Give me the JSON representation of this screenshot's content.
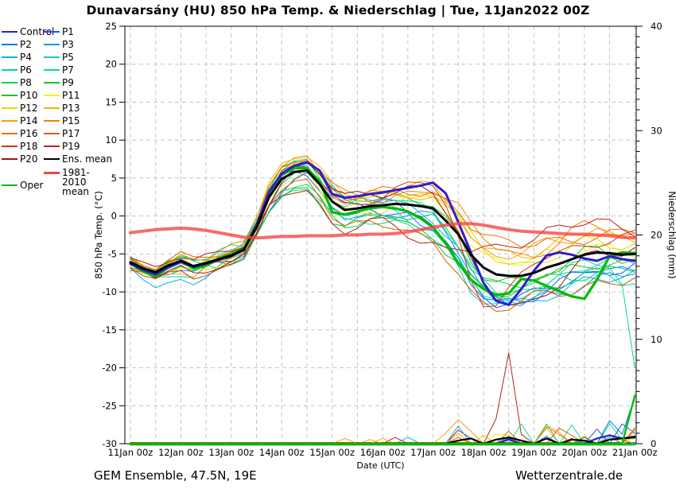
{
  "title": "Dunavarsány  (HU)  850 hPa Temp. & Niederschlag | Tue, 11Jan2022 00Z",
  "footer": {
    "left": "GEM Ensemble, 47.5N, 19E",
    "right": "Wetterzentrale.de"
  },
  "colors": {
    "grid": "#c4c4c4",
    "frame": "#000000",
    "control": "#2d1ecf",
    "oper": "#00bb00",
    "ens_mean": "#000000",
    "climate_mean": "#f64545"
  },
  "legend": {
    "col1": [
      {
        "label": "Control",
        "color": "#2d1ecf"
      },
      {
        "label": "P2",
        "color": "#0077f0"
      },
      {
        "label": "P4",
        "color": "#00b4e6"
      },
      {
        "label": "P6",
        "color": "#00d4ad"
      },
      {
        "label": "P8",
        "color": "#00d455"
      },
      {
        "label": "P10",
        "color": "#2cbe19"
      },
      {
        "label": "P12",
        "color": "#ead800"
      },
      {
        "label": "P14",
        "color": "#ff9d00"
      },
      {
        "label": "P16",
        "color": "#e87200"
      },
      {
        "label": "P18",
        "color": "#d03a10"
      },
      {
        "label": "P20",
        "color": "#a51212"
      },
      {
        "label": "Oper",
        "color": "#00bb00",
        "gap": true
      }
    ],
    "col2": [
      {
        "label": "P1",
        "color": "#1a56f0"
      },
      {
        "label": "P3",
        "color": "#0095f0"
      },
      {
        "label": "P5",
        "color": "#00ced2"
      },
      {
        "label": "P7",
        "color": "#00e08a"
      },
      {
        "label": "P9",
        "color": "#0cc42c"
      },
      {
        "label": "P11",
        "color": "#f0f00a"
      },
      {
        "label": "P13",
        "color": "#f0b400"
      },
      {
        "label": "P15",
        "color": "#f58200"
      },
      {
        "label": "P17",
        "color": "#d85e00"
      },
      {
        "label": "P19",
        "color": "#bb2218"
      },
      {
        "label": "Ens. mean",
        "color": "#000000"
      },
      {
        "label": "1981-2010 mean",
        "color": "#f64545",
        "two_line": true
      }
    ]
  },
  "chart_data": {
    "type": "line",
    "title": "Dunavarsány (HU) 850 hPa Temp. & Niederschlag | Tue, 11Jan2022 00Z",
    "x_axis": {
      "label": "Date (UTC)",
      "tick_labels": [
        "11Jan 00z",
        "12Jan 00z",
        "13Jan 00z",
        "14Jan 00z",
        "15Jan 00z",
        "16Jan 00z",
        "17Jan 00z",
        "18Jan 00z",
        "19Jan 00z",
        "20Jan 00z",
        "21Jan 00z"
      ],
      "start_hour": 0,
      "end_hour": 240,
      "step_hours": 6,
      "gridline_every_hours": 12
    },
    "y_left": {
      "label": "850 hPa Temp. (°C)",
      "min": -30,
      "max": 25,
      "tick_step": 5,
      "ticks": [
        25,
        20,
        15,
        10,
        5,
        0,
        -5,
        -10,
        -15,
        -20,
        -25,
        -30
      ]
    },
    "y_right": {
      "label": "Niederschlag (mm)",
      "min": 0,
      "max": 40,
      "tick_step": 10,
      "minor_tick_step": 1,
      "ticks": [
        40,
        30,
        20,
        10,
        0
      ]
    },
    "grid": "dashed",
    "legend_position": "top-left",
    "temperature_series": {
      "ens_mean": {
        "label": "Ens. mean",
        "color": "#000000",
        "values": [
          -6.1,
          -6.9,
          -7.4,
          -6.5,
          -5.9,
          -6.6,
          -6.2,
          -5.7,
          -5.2,
          -4.4,
          -1.5,
          2.5,
          4.9,
          5.8,
          6.0,
          4.2,
          1.9,
          0.8,
          1.0,
          1.3,
          1.4,
          1.6,
          1.5,
          1.3,
          1.0,
          -0.6,
          -2.4,
          -5.1,
          -6.8,
          -7.7,
          -7.9,
          -7.9,
          -7.5,
          -6.8,
          -6.3,
          -5.7,
          -5.1,
          -4.8,
          -4.9,
          -5.1,
          -5.0
        ]
      },
      "control": {
        "label": "Control",
        "color": "#2d1ecf",
        "values": [
          -6.3,
          -7.1,
          -7.7,
          -6.7,
          -6.0,
          -6.7,
          -6.3,
          -5.8,
          -5.3,
          -4.5,
          -1.2,
          3.2,
          5.6,
          6.6,
          7.1,
          6.0,
          2.9,
          2.4,
          2.6,
          2.9,
          3.1,
          3.4,
          3.7,
          4.0,
          4.4,
          3.0,
          -0.8,
          -4.8,
          -8.8,
          -11.2,
          -11.7,
          -9.6,
          -7.2,
          -5.2,
          -4.8,
          -5.1,
          -5.6,
          -5.9,
          -5.3,
          -5.7,
          -5.9
        ]
      },
      "oper": {
        "label": "Oper",
        "color": "#00bb00",
        "values": [
          -6.2,
          -7.3,
          -8.0,
          -6.8,
          -5.9,
          -6.9,
          -6.5,
          -5.6,
          -5.1,
          -4.3,
          -1.0,
          3.0,
          5.4,
          6.3,
          6.3,
          4.6,
          0.5,
          0.2,
          0.6,
          1.0,
          1.2,
          1.0,
          0.6,
          -0.3,
          -1.5,
          -3.6,
          -6.2,
          -8.4,
          -9.6,
          -10.4,
          -10.2,
          -8.3,
          -8.5,
          -9.2,
          -9.9,
          -10.6,
          -10.9,
          -8.4,
          -5.3,
          -4.8,
          -4.9
        ]
      },
      "climate_mean": {
        "label": "1981-2010 mean",
        "color": "#f64545",
        "values": [
          -2.2,
          -2.0,
          -1.8,
          -1.7,
          -1.6,
          -1.7,
          -1.9,
          -2.2,
          -2.5,
          -2.8,
          -2.9,
          -2.8,
          -2.7,
          -2.7,
          -2.6,
          -2.6,
          -2.6,
          -2.5,
          -2.5,
          -2.4,
          -2.4,
          -2.3,
          -2.1,
          -1.8,
          -1.5,
          -1.2,
          -1.0,
          -1.0,
          -1.2,
          -1.5,
          -1.8,
          -2.0,
          -2.1,
          -2.2,
          -2.3,
          -2.4,
          -2.4,
          -2.5,
          -2.6,
          -2.8,
          -2.9
        ]
      },
      "members_note": "20 perturbed members; offsets from ens_mean at 24h keyframes (t=0..240h)",
      "members": [
        {
          "name": "P1",
          "color": "#1a56f0",
          "offsets_24h": [
            0.3,
            -0.6,
            0.3,
            -1.8,
            0.9,
            -0.9,
            -2.0,
            -4.0,
            -2.5,
            -3.0,
            -1.6
          ]
        },
        {
          "name": "P2",
          "color": "#0077f0",
          "offsets_24h": [
            -0.4,
            0.4,
            -0.8,
            0.6,
            -1.2,
            0.5,
            -2.8,
            -3.6,
            -3.2,
            -2.0,
            -2.4
          ]
        },
        {
          "name": "P3",
          "color": "#0095f0",
          "offsets_24h": [
            0.6,
            -1.2,
            0.5,
            1.0,
            -0.6,
            -1.5,
            -1.0,
            -3.0,
            -3.5,
            -4.0,
            -2.0
          ]
        },
        {
          "name": "P4",
          "color": "#00b4e6",
          "offsets_24h": [
            -0.8,
            -2.7,
            -0.4,
            -0.9,
            1.2,
            0.8,
            -1.5,
            -2.5,
            -3.8,
            -3.5,
            -2.8
          ]
        },
        {
          "name": "P5",
          "color": "#00ced2",
          "offsets_24h": [
            0.4,
            -1.8,
            0.9,
            0.4,
            1.8,
            -0.4,
            -3.2,
            -4.6,
            -2.8,
            -1.5,
            -1.0
          ]
        },
        {
          "name": "P6",
          "color": "#00d4ad",
          "offsets_24h": [
            -0.6,
            0.7,
            -1.1,
            1.4,
            0.5,
            1.2,
            -0.5,
            -2.0,
            -3.0,
            -2.5,
            -3.6
          ]
        },
        {
          "name": "P7",
          "color": "#00e08a",
          "offsets_24h": [
            0.8,
            -0.3,
            1.1,
            -2.6,
            -1.5,
            -2.2,
            -3.6,
            -3.2,
            -2.0,
            -1.0,
            -2.0
          ]
        },
        {
          "name": "P8",
          "color": "#00d455",
          "offsets_24h": [
            -1.0,
            0.9,
            -0.9,
            -1.5,
            -2.0,
            -1.8,
            -1.2,
            -1.5,
            -1.0,
            -2.8,
            -1.8
          ]
        },
        {
          "name": "P9",
          "color": "#0cc42c",
          "offsets_24h": [
            0.2,
            -1.0,
            0.3,
            -2.2,
            -2.5,
            -1.2,
            -4.0,
            -2.8,
            -1.5,
            0.5,
            -0.8
          ]
        },
        {
          "name": "P10",
          "color": "#2cbe19",
          "offsets_24h": [
            -0.5,
            0.5,
            -0.5,
            1.2,
            1.5,
            0.9,
            0.5,
            -1.0,
            -0.5,
            -1.5,
            -1.2
          ]
        },
        {
          "name": "P11",
          "color": "#f0f00a",
          "offsets_24h": [
            0.5,
            -0.8,
            0.8,
            -0.6,
            0.3,
            1.5,
            1.0,
            1.5,
            2.0,
            0.8,
            0.4
          ]
        },
        {
          "name": "P12",
          "color": "#ead800",
          "offsets_24h": [
            -0.7,
            0.2,
            -1.1,
            0.9,
            -0.8,
            -0.6,
            2.0,
            2.5,
            1.0,
            1.8,
            0.8
          ]
        },
        {
          "name": "P13",
          "color": "#f0b400",
          "offsets_24h": [
            0.4,
            -1.5,
            0.6,
            1.8,
            2.2,
            1.2,
            1.5,
            3.0,
            2.5,
            3.0,
            1.5
          ]
        },
        {
          "name": "P14",
          "color": "#ff9d00",
          "offsets_24h": [
            -0.3,
            0.8,
            -0.2,
            2.0,
            1.0,
            1.9,
            3.0,
            2.0,
            3.5,
            2.5,
            2.8
          ]
        },
        {
          "name": "P15",
          "color": "#f58200",
          "offsets_24h": [
            0.7,
            -0.4,
            1.2,
            0.2,
            2.5,
            0.6,
            2.5,
            4.2,
            2.0,
            4.0,
            2.0
          ]
        },
        {
          "name": "P16",
          "color": "#e87200",
          "offsets_24h": [
            -0.9,
            0.3,
            -0.6,
            1.5,
            1.4,
            2.0,
            1.8,
            4.4,
            4.0,
            2.0,
            3.2
          ]
        },
        {
          "name": "P17",
          "color": "#d85e00",
          "offsets_24h": [
            0.1,
            1.0,
            0.4,
            -1.2,
            -1.8,
            -2.5,
            -4.5,
            -5.0,
            -3.0,
            -4.5,
            -3.0
          ]
        },
        {
          "name": "P18",
          "color": "#d03a10",
          "offsets_24h": [
            -0.6,
            -1.3,
            -1.4,
            0.7,
            0.6,
            1.0,
            3.4,
            -4.6,
            1.5,
            1.0,
            2.5
          ]
        },
        {
          "name": "P19",
          "color": "#bb2218",
          "offsets_24h": [
            0.6,
            0.6,
            0.9,
            -2.0,
            -3.0,
            -2.0,
            -5.0,
            2.5,
            4.5,
            4.5,
            3.0
          ]
        },
        {
          "name": "P20",
          "color": "#a51212",
          "offsets_24h": [
            -0.2,
            -0.9,
            -1.0,
            -0.4,
            2.0,
            1.4,
            2.2,
            -2.0,
            -4.0,
            -0.5,
            0.5
          ]
        }
      ],
      "member_overrides_6h": {
        "P7": {
          "39": -9.0,
          "40": -20.0
        }
      }
    },
    "precipitation_series": {
      "unit": "mm",
      "baseline": 0,
      "series": [
        {
          "name": "P19",
          "color": "#bb2218",
          "spikes": [
            [
              21,
              0.6
            ],
            [
              26,
              1.3
            ],
            [
              27,
              0.5
            ],
            [
              29,
              2.4
            ],
            [
              30,
              8.7
            ],
            [
              31,
              0.9
            ],
            [
              35,
              0.5
            ]
          ]
        },
        {
          "name": "P14",
          "color": "#ff9d00",
          "spikes": [
            [
              17,
              0.5
            ],
            [
              19,
              0.4
            ],
            [
              25,
              1.0
            ],
            [
              26,
              2.3
            ],
            [
              27,
              1.2
            ],
            [
              30,
              0.6
            ],
            [
              33,
              1.8
            ],
            [
              34,
              1.1
            ],
            [
              38,
              0.9
            ],
            [
              40,
              0.8
            ]
          ]
        },
        {
          "name": "P13",
          "color": "#f0b400",
          "spikes": [
            [
              20,
              0.5
            ],
            [
              26,
              1.0
            ],
            [
              28,
              0.8
            ],
            [
              33,
              1.5
            ],
            [
              36,
              0.7
            ],
            [
              40,
              1.2
            ]
          ]
        },
        {
          "name": "P4",
          "color": "#00b4e6",
          "spikes": [
            [
              22,
              0.6
            ],
            [
              26,
              1.7
            ],
            [
              30,
              0.7
            ],
            [
              35,
              0.4
            ],
            [
              38,
              0.6
            ]
          ]
        },
        {
          "name": "P7",
          "color": "#00e08a",
          "spikes": [
            [
              31,
              1.9
            ],
            [
              33,
              1.9
            ],
            [
              35,
              1.8
            ],
            [
              38,
              1.9
            ],
            [
              39,
              0.4
            ]
          ]
        },
        {
          "name": "P2",
          "color": "#0077f0",
          "spikes": [
            [
              30,
              0.5
            ],
            [
              36,
              0.6
            ],
            [
              38,
              2.2
            ],
            [
              39,
              0.9
            ],
            [
              40,
              4.5
            ]
          ]
        },
        {
          "name": "P1",
          "color": "#1a56f0",
          "spikes": [
            [
              33,
              0.7
            ],
            [
              37,
              1.4
            ],
            [
              39,
              1.9
            ],
            [
              40,
              1.0
            ]
          ]
        },
        {
          "name": "P11",
          "color": "#f0f00a",
          "spikes": [
            [
              29,
              0.9
            ],
            [
              30,
              0.8
            ],
            [
              36,
              0.8
            ],
            [
              40,
              0.5
            ]
          ]
        },
        {
          "name": "P17",
          "color": "#d85e00",
          "spikes": [
            [
              26,
              0.6
            ],
            [
              30,
              1.2
            ],
            [
              34,
              1.5
            ],
            [
              35,
              0.8
            ],
            [
              40,
              1.4
            ]
          ]
        },
        {
          "name": "P16",
          "color": "#e87200",
          "spikes": [
            [
              33,
              1.6
            ],
            [
              34,
              0.9
            ],
            [
              40,
              1.5
            ]
          ]
        },
        {
          "name": "Control",
          "color": "#2d1ecf",
          "width": 2.2,
          "spikes": [
            [
              30,
              0.4
            ],
            [
              37,
              0.5
            ],
            [
              38,
              0.8
            ],
            [
              39,
              0.5
            ],
            [
              40,
              0.7
            ]
          ]
        },
        {
          "name": "Ens. mean",
          "color": "#000000",
          "width": 2.2,
          "spikes": [
            [
              26,
              0.3
            ],
            [
              27,
              0.5
            ],
            [
              29,
              0.4
            ],
            [
              30,
              0.6
            ],
            [
              31,
              0.3
            ],
            [
              33,
              0.5
            ],
            [
              35,
              0.4
            ],
            [
              36,
              0.3
            ],
            [
              38,
              0.4
            ],
            [
              39,
              0.5
            ],
            [
              40,
              0.6
            ]
          ]
        },
        {
          "name": "Oper",
          "color": "#00bb00",
          "width": 2.4,
          "spikes": [
            [
              40,
              4.6
            ]
          ]
        }
      ]
    }
  }
}
